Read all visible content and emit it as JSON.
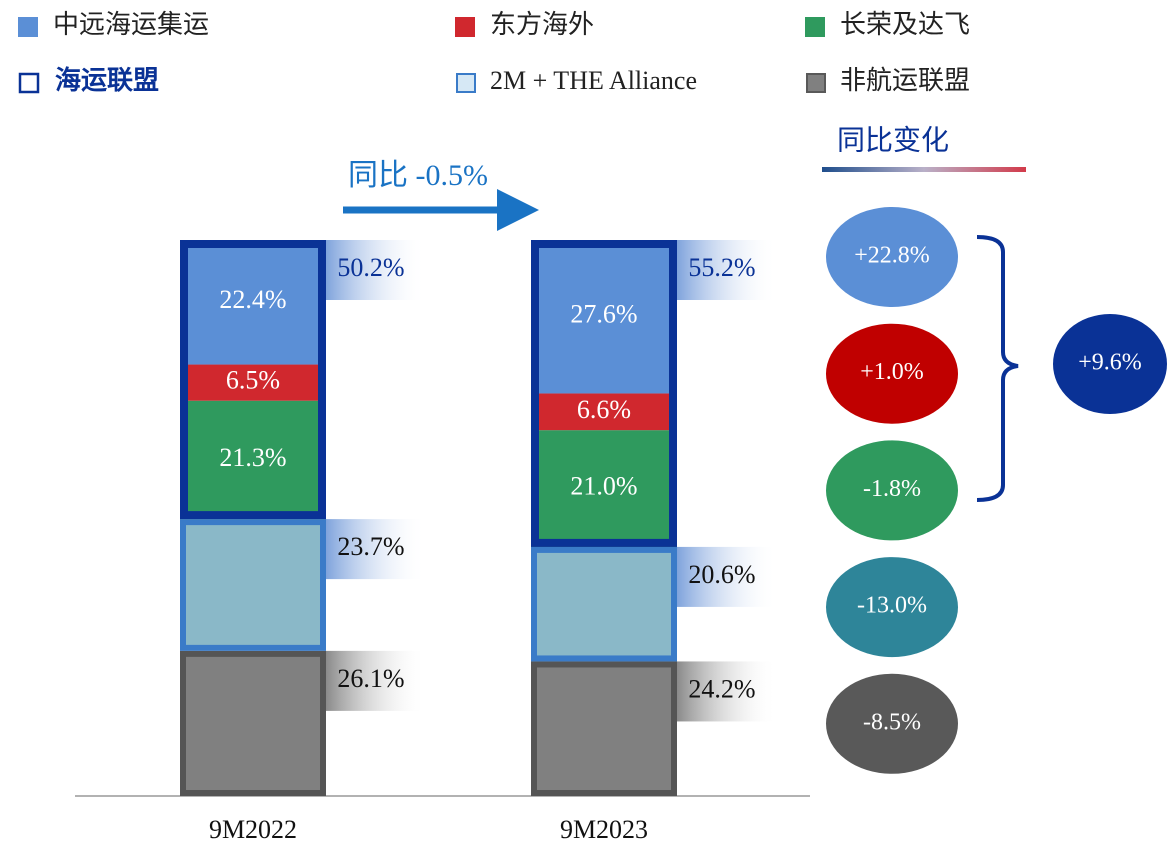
{
  "chart_data": {
    "type": "stacked_bar",
    "categories": [
      "9M2022",
      "9M2023"
    ],
    "ylim": [
      0,
      100
    ],
    "series": [
      {
        "name": "中远海运集运",
        "color": "#5b8fd6",
        "values": [
          22.4,
          27.6
        ],
        "value_labels": [
          "22.4%",
          "27.6%"
        ],
        "change": 22.8,
        "change_label": "+22.8%",
        "change_color": "#5b8fd6"
      },
      {
        "name": "东方海外",
        "color": "#d0282e",
        "values": [
          6.5,
          6.6
        ],
        "value_labels": [
          "6.5%",
          "6.6%"
        ],
        "change": 1.0,
        "change_label": "+1.0%",
        "change_color": "#c00000"
      },
      {
        "name": "长荣及达飞",
        "color": "#2f9a5e",
        "values": [
          21.3,
          21.0
        ],
        "value_labels": [
          "21.3%",
          "21.0%"
        ],
        "change": -1.8,
        "change_label": "-1.8%",
        "change_color": "#2f9a5e"
      },
      {
        "name": "2M + THE Alliance",
        "color": "#8ab8c8",
        "values": [
          23.7,
          20.6
        ],
        "value_labels": [
          "23.7%",
          "20.6%"
        ],
        "change": -13.0,
        "change_label": "-13.0%",
        "change_color": "#2e8599"
      },
      {
        "name": "非航运联盟",
        "color": "#808080",
        "values": [
          26.1,
          24.2
        ],
        "value_labels": [
          "26.1%",
          "24.2%"
        ],
        "change": -8.5,
        "change_label": "-8.5%",
        "change_color": "#595959"
      }
    ],
    "alliance": {
      "name": "海运联盟",
      "color": "#0a3296",
      "values": [
        50.2,
        55.2
      ],
      "value_labels": [
        "50.2%",
        "55.2%"
      ],
      "change": 9.6,
      "change_label": "+9.6%"
    },
    "annotation": "同比 -0.5%",
    "change_title": "同比变化"
  }
}
